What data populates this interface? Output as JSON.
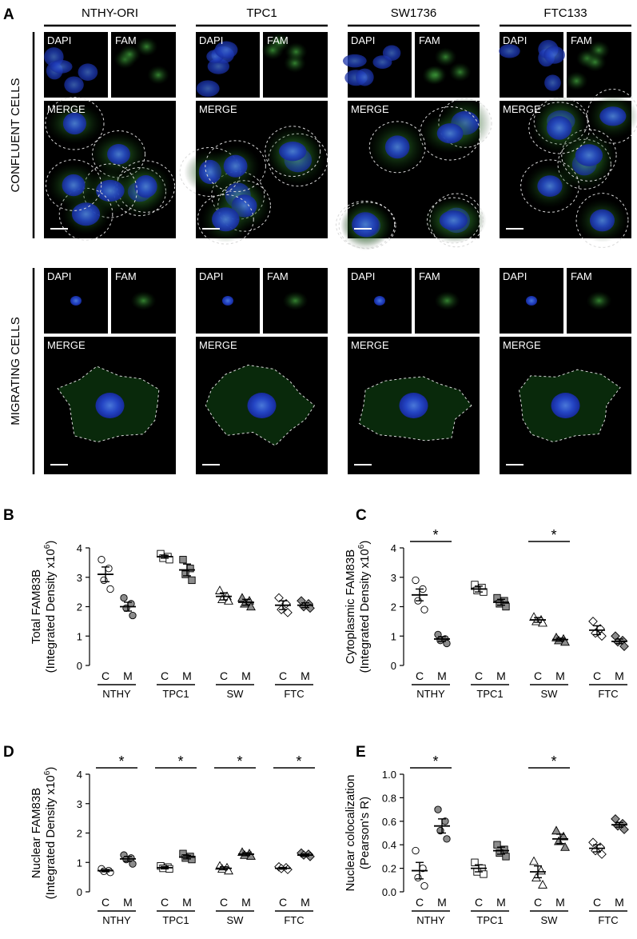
{
  "figure": {
    "panel_letters": [
      "A",
      "B",
      "C",
      "D",
      "E"
    ],
    "column_labels": [
      "NTHY-ORI",
      "TPC1",
      "SW1736",
      "FTC133"
    ],
    "row_labels": [
      "CONFLUENT CELLS",
      "MIGRATING CELLS"
    ],
    "channel_labels": {
      "dapi": "DAPI",
      "fam": "FAM",
      "merge": "MERGE"
    },
    "colors": {
      "dapi": "#1a2fc8",
      "fam": "#2fb63a",
      "background": "#000000",
      "outline": "#d8d8d8",
      "filled_marker": "#8c8c8c"
    }
  },
  "chart_data": [
    {
      "id": "B",
      "type": "scatter",
      "letter": "B",
      "ylabel_line1": "Total FAM83B",
      "ylabel_line2_prefix": "(Integrated Density x10",
      "ylabel_sup": "6",
      "ylabel_line2_suffix": ")",
      "ylim": [
        0,
        4
      ],
      "yticks": [
        "0",
        "1",
        "2",
        "3",
        "4"
      ],
      "categories": [
        "C",
        "M",
        "C",
        "M",
        "C",
        "M",
        "C",
        "M"
      ],
      "groups": [
        "NTHY",
        "TPC1",
        "SW",
        "FTC"
      ],
      "markers": [
        "circle",
        "circle",
        "square",
        "square",
        "triangle",
        "triangle",
        "diamond",
        "diamond"
      ],
      "means": [
        3.1,
        2.0,
        3.7,
        3.25,
        2.35,
        2.15,
        2.05,
        2.05
      ],
      "sems": [
        0.25,
        0.15,
        0.05,
        0.2,
        0.12,
        0.1,
        0.15,
        0.08
      ],
      "points": [
        [
          3.6,
          3.3,
          2.9,
          2.6
        ],
        [
          2.3,
          2.1,
          1.95,
          1.7
        ],
        [
          3.8,
          3.7,
          3.65,
          3.6
        ],
        [
          3.6,
          3.3,
          3.1,
          2.9
        ],
        [
          2.55,
          2.35,
          2.25,
          2.2
        ],
        [
          2.3,
          2.2,
          2.1,
          2.0
        ],
        [
          2.3,
          2.1,
          1.9,
          1.8
        ],
        [
          2.2,
          2.1,
          2.0,
          1.95
        ]
      ],
      "significance": []
    },
    {
      "id": "C",
      "type": "scatter",
      "letter": "C",
      "ylabel_line1": "Cytoplasmic FAM83B",
      "ylabel_line2_prefix": "(Integrated Density x10",
      "ylabel_sup": "6",
      "ylabel_line2_suffix": ")",
      "ylim": [
        0,
        4
      ],
      "yticks": [
        "0",
        "1",
        "2",
        "3",
        "4"
      ],
      "categories": [
        "C",
        "M",
        "C",
        "M",
        "C",
        "M",
        "C",
        "M"
      ],
      "groups": [
        "NTHY",
        "TPC1",
        "SW",
        "FTC"
      ],
      "markers": [
        "circle",
        "circle",
        "square",
        "square",
        "triangle",
        "triangle",
        "diamond",
        "diamond"
      ],
      "means": [
        2.4,
        0.9,
        2.6,
        2.15,
        1.55,
        0.88,
        1.2,
        0.82
      ],
      "sems": [
        0.2,
        0.08,
        0.1,
        0.1,
        0.08,
        0.05,
        0.15,
        0.08
      ],
      "points": [
        [
          2.9,
          2.6,
          2.2,
          1.9
        ],
        [
          1.05,
          0.9,
          0.85,
          0.75
        ],
        [
          2.75,
          2.65,
          2.55,
          2.5
        ],
        [
          2.3,
          2.2,
          2.1,
          2.0
        ],
        [
          1.65,
          1.55,
          1.5,
          1.45
        ],
        [
          0.95,
          0.9,
          0.85,
          0.8
        ],
        [
          1.5,
          1.25,
          1.1,
          1.0
        ],
        [
          1.0,
          0.85,
          0.8,
          0.65
        ]
      ],
      "significance": [
        {
          "from": 0,
          "to": 1,
          "label": "*"
        },
        {
          "from": 4,
          "to": 5,
          "label": "*"
        }
      ]
    },
    {
      "id": "D",
      "type": "scatter",
      "letter": "D",
      "ylabel_line1": "Nuclear FAM83B",
      "ylabel_line2_prefix": "(Integrated Density x10",
      "ylabel_sup": "6",
      "ylabel_line2_suffix": ")",
      "ylim": [
        0,
        4
      ],
      "yticks": [
        "0",
        "1",
        "2",
        "3",
        "4"
      ],
      "categories": [
        "C",
        "M",
        "C",
        "M",
        "C",
        "M",
        "C",
        "M"
      ],
      "groups": [
        "NTHY",
        "TPC1",
        "SW",
        "FTC"
      ],
      "markers": [
        "circle",
        "circle",
        "square",
        "square",
        "triangle",
        "triangle",
        "diamond",
        "diamond"
      ],
      "means": [
        0.72,
        1.12,
        0.82,
        1.18,
        0.8,
        1.28,
        0.8,
        1.25
      ],
      "sems": [
        0.04,
        0.08,
        0.04,
        0.06,
        0.05,
        0.05,
        0.03,
        0.04
      ],
      "points": [
        [
          0.78,
          0.72,
          0.7,
          0.66
        ],
        [
          1.25,
          1.15,
          1.1,
          0.95
        ],
        [
          0.88,
          0.84,
          0.8,
          0.78
        ],
        [
          1.3,
          1.2,
          1.15,
          1.1
        ],
        [
          0.88,
          0.82,
          0.78,
          0.72
        ],
        [
          1.35,
          1.3,
          1.25,
          1.22
        ],
        [
          0.85,
          0.82,
          0.79,
          0.76
        ],
        [
          1.32,
          1.28,
          1.25,
          1.2
        ]
      ],
      "significance": [
        {
          "from": 0,
          "to": 1,
          "label": "*"
        },
        {
          "from": 2,
          "to": 3,
          "label": "*"
        },
        {
          "from": 4,
          "to": 5,
          "label": "*"
        },
        {
          "from": 6,
          "to": 7,
          "label": "*"
        }
      ]
    },
    {
      "id": "E",
      "type": "scatter",
      "letter": "E",
      "ylabel_line1": "Nuclear colocalization",
      "ylabel_line2_prefix": "(Pearson's R)",
      "ylabel_sup": "",
      "ylabel_line2_suffix": "",
      "ylim": [
        0,
        1.0
      ],
      "yticks": [
        "0.0",
        "0.2",
        "0.4",
        "0.6",
        "0.8",
        "1.0"
      ],
      "categories": [
        "C",
        "M",
        "C",
        "M",
        "C",
        "M",
        "C",
        "M"
      ],
      "groups": [
        "NTHY",
        "TPC1",
        "SW",
        "FTC"
      ],
      "markers": [
        "circle",
        "circle",
        "square",
        "square",
        "triangle",
        "triangle",
        "diamond",
        "diamond"
      ],
      "means": [
        0.18,
        0.56,
        0.2,
        0.35,
        0.17,
        0.45,
        0.37,
        0.57
      ],
      "sems": [
        0.07,
        0.06,
        0.03,
        0.03,
        0.05,
        0.04,
        0.03,
        0.02
      ],
      "points": [
        [
          0.35,
          0.2,
          0.12,
          0.05
        ],
        [
          0.7,
          0.6,
          0.52,
          0.45
        ],
        [
          0.25,
          0.2,
          0.17,
          0.15
        ],
        [
          0.4,
          0.36,
          0.33,
          0.3
        ],
        [
          0.26,
          0.18,
          0.12,
          0.06
        ],
        [
          0.52,
          0.47,
          0.43,
          0.38
        ],
        [
          0.42,
          0.38,
          0.35,
          0.32
        ],
        [
          0.62,
          0.58,
          0.56,
          0.53
        ]
      ],
      "significance": [
        {
          "from": 0,
          "to": 1,
          "label": "*"
        },
        {
          "from": 4,
          "to": 5,
          "label": "*"
        }
      ]
    }
  ]
}
